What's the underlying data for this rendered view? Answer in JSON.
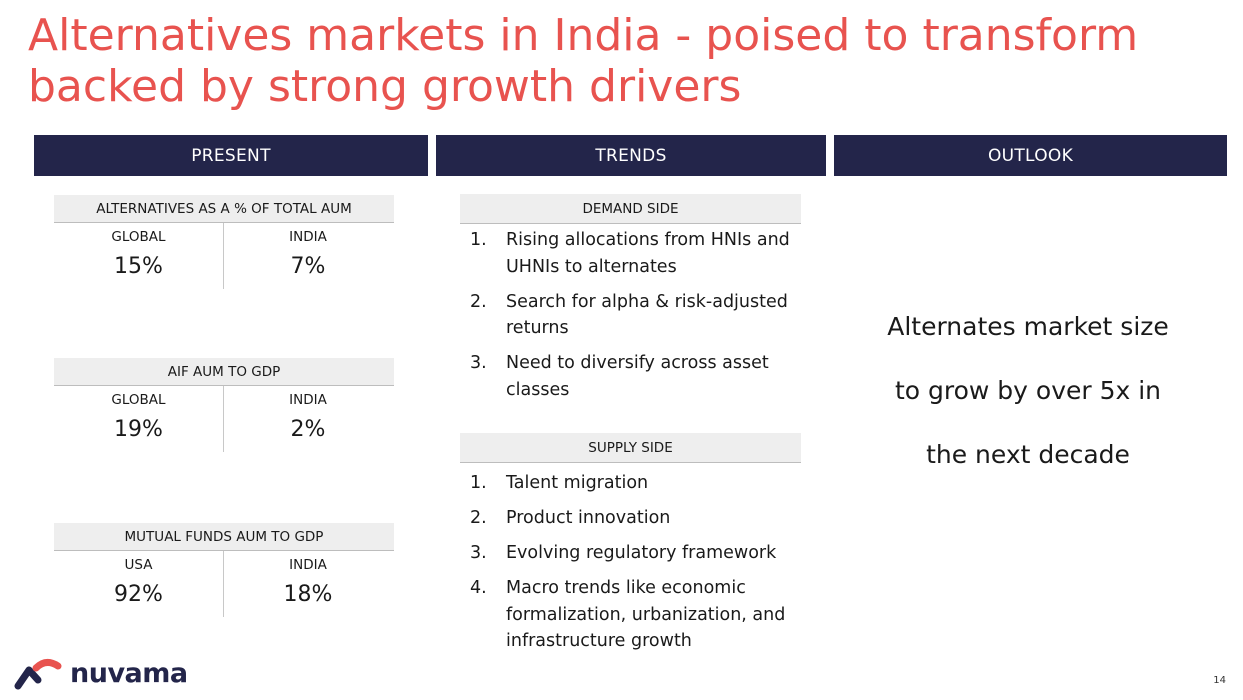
{
  "title": "Alternatives markets in India - poised to transform backed by strong growth drivers",
  "columns": {
    "present": "PRESENT",
    "trends": "TRENDS",
    "outlook": "OUTLOOK"
  },
  "metrics": [
    {
      "heading": "ALTERNATIVES AS A % OF TOTAL AUM",
      "left_label": "GLOBAL",
      "left_value": "15%",
      "right_label": "INDIA",
      "right_value": "7%"
    },
    {
      "heading": "AIF AUM TO GDP",
      "left_label": "GLOBAL",
      "left_value": "19%",
      "right_label": "INDIA",
      "right_value": "2%"
    },
    {
      "heading": "MUTUAL FUNDS AUM TO GDP",
      "left_label": "USA",
      "left_value": "92%",
      "right_label": "INDIA",
      "right_value": "18%"
    }
  ],
  "demand": {
    "heading": "DEMAND SIDE",
    "items": [
      {
        "num": "1.",
        "text": "Rising allocations from HNIs and UHNIs to alternates"
      },
      {
        "num": "2.",
        "text": "Search for alpha & risk-adjusted returns"
      },
      {
        "num": "3.",
        "text": "Need to diversify across asset classes"
      }
    ]
  },
  "supply": {
    "heading": "SUPPLY SIDE",
    "items": [
      {
        "num": "1.",
        "text": "Talent migration"
      },
      {
        "num": "2.",
        "text": "Product innovation"
      },
      {
        "num": "3.",
        "text": "Evolving regulatory framework"
      },
      {
        "num": "4.",
        "text": "Macro trends like economic formalization, urbanization, and infrastructure growth"
      }
    ]
  },
  "outlook_text": "Alternates market size to grow by over 5x in the next decade",
  "logo_text": "nuvama",
  "page_number": "14",
  "colors": {
    "title": "#e8534f",
    "header_bg": "#23254a",
    "logo_red": "#e8534f",
    "logo_navy": "#23254a"
  }
}
